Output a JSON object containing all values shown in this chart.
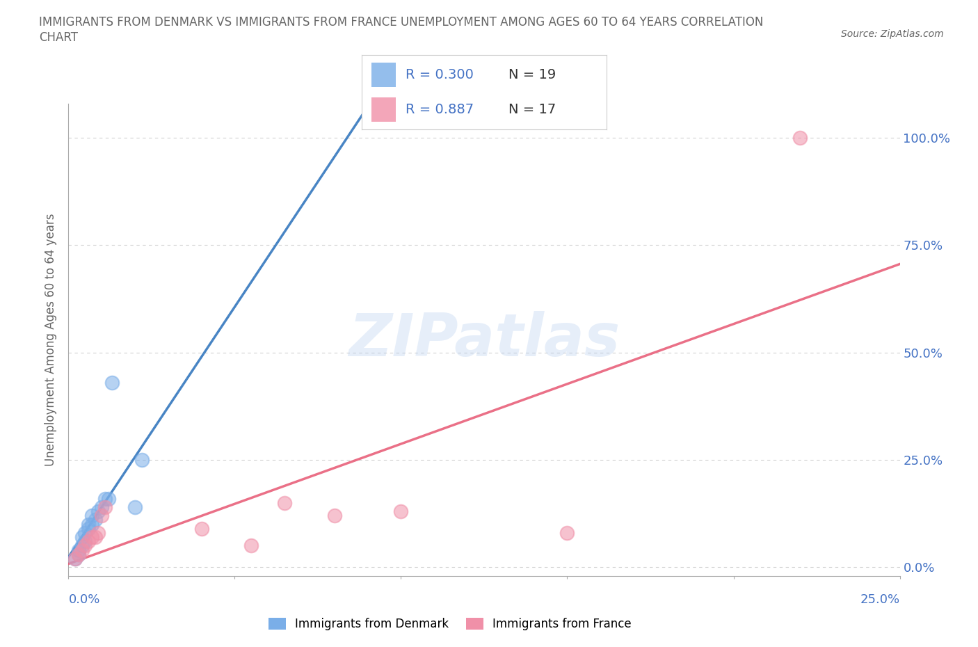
{
  "title_line1": "IMMIGRANTS FROM DENMARK VS IMMIGRANTS FROM FRANCE UNEMPLOYMENT AMONG AGES 60 TO 64 YEARS CORRELATION",
  "title_line2": "CHART",
  "source": "Source: ZipAtlas.com",
  "ylabel": "Unemployment Among Ages 60 to 64 years",
  "yticks_labels": [
    "0.0%",
    "25.0%",
    "50.0%",
    "75.0%",
    "100.0%"
  ],
  "ytick_vals": [
    0.0,
    0.25,
    0.5,
    0.75,
    1.0
  ],
  "xlim": [
    0.0,
    0.25
  ],
  "ylim": [
    -0.02,
    1.08
  ],
  "watermark": "ZIPatlas",
  "denmark_color": "#7aaee8",
  "france_color": "#f090a8",
  "denmark_line_color": "#3a7bbf",
  "france_line_color": "#e8607a",
  "denmark_R": 0.3,
  "denmark_N": 19,
  "france_R": 0.887,
  "france_N": 17,
  "denmark_x": [
    0.002,
    0.003,
    0.003,
    0.004,
    0.004,
    0.005,
    0.005,
    0.006,
    0.006,
    0.007,
    0.007,
    0.008,
    0.009,
    0.01,
    0.011,
    0.012,
    0.013,
    0.02,
    0.022
  ],
  "denmark_y": [
    0.02,
    0.03,
    0.04,
    0.05,
    0.07,
    0.06,
    0.08,
    0.09,
    0.1,
    0.1,
    0.12,
    0.11,
    0.13,
    0.14,
    0.16,
    0.16,
    0.43,
    0.14,
    0.25
  ],
  "france_x": [
    0.002,
    0.003,
    0.004,
    0.005,
    0.006,
    0.007,
    0.008,
    0.009,
    0.01,
    0.011,
    0.04,
    0.055,
    0.065,
    0.08,
    0.1,
    0.15,
    0.22
  ],
  "france_y": [
    0.02,
    0.03,
    0.04,
    0.05,
    0.06,
    0.07,
    0.07,
    0.08,
    0.12,
    0.14,
    0.09,
    0.05,
    0.15,
    0.12,
    0.13,
    0.08,
    1.0
  ],
  "grid_color": "#cccccc",
  "background_color": "#ffffff",
  "title_color": "#666666",
  "tick_label_color": "#4472c4",
  "xtick_vals": [
    0.0,
    0.05,
    0.1,
    0.15,
    0.2,
    0.25
  ]
}
